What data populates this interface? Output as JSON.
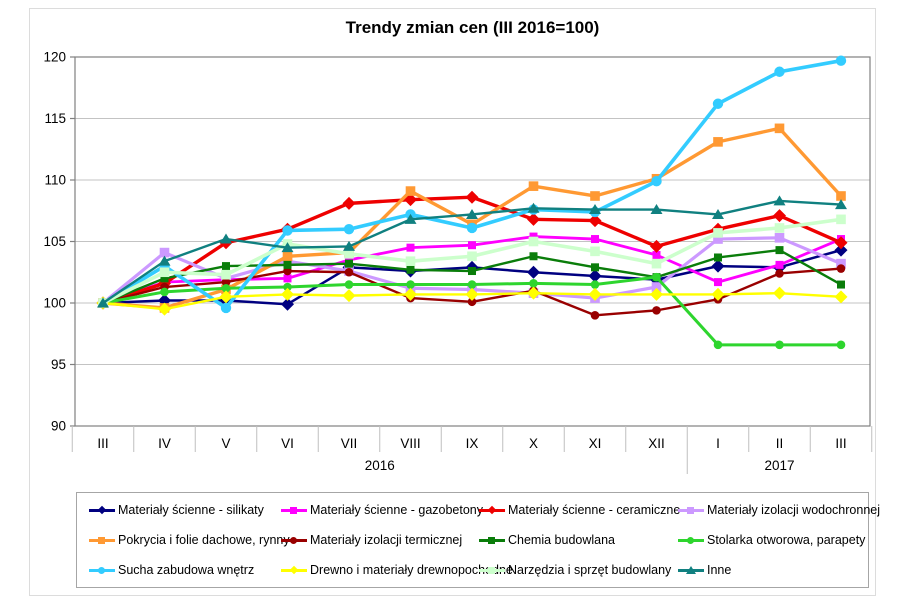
{
  "page": {
    "background": "#FFFFFF"
  },
  "chart_data": {
    "type": "line",
    "title": "Trendy zmian cen (III 2016=100)",
    "x_labels": [
      "III",
      "IV",
      "V",
      "VI",
      "VII",
      "VIII",
      "IX",
      "X",
      "XI",
      "XII",
      "I",
      "II",
      "III"
    ],
    "x_year_groups": [
      {
        "label": "2016",
        "from_index": 0,
        "to_index": 9
      },
      {
        "label": "2017",
        "from_index": 10,
        "to_index": 12
      }
    ],
    "ylim": [
      90,
      120
    ],
    "yticks": [
      90,
      95,
      100,
      105,
      110,
      115,
      120
    ],
    "grid": true,
    "legend_position": "bottom",
    "axis_color": "#808080",
    "grid_color": "#C3C3C3",
    "separator_color": "#BFBFBF",
    "series": [
      {
        "key": "silikaty",
        "name": "Materiały ścienne - silikaty",
        "color": "#000080",
        "marker": "diamond",
        "width": 2.5,
        "values": [
          100,
          100.2,
          100.2,
          99.9,
          102.9,
          102.6,
          102.9,
          102.5,
          102.2,
          101.9,
          103.0,
          102.9,
          104.3
        ]
      },
      {
        "key": "gazobetony",
        "name": "Materiały ścienne - gazobetony",
        "color": "#FF00FF",
        "marker": "square",
        "width": 2.8,
        "values": [
          100,
          101.7,
          101.9,
          102.0,
          103.5,
          104.5,
          104.7,
          105.4,
          105.2,
          103.9,
          101.7,
          103.1,
          105.2
        ]
      },
      {
        "key": "ceramiczne",
        "name": "Materiały ścienne - ceramiczne",
        "color": "#EE0000",
        "marker": "diamond",
        "width": 3.4,
        "values": [
          100,
          101.6,
          104.9,
          106.0,
          108.1,
          108.4,
          108.6,
          106.8,
          106.7,
          104.6,
          106.0,
          107.1,
          104.9
        ]
      },
      {
        "key": "wodochronnej",
        "name": "Materiały izolacji wodochronnej",
        "color": "#CC99FF",
        "marker": "square",
        "width": 3.2,
        "values": [
          100,
          104.1,
          102.0,
          103.4,
          102.6,
          101.2,
          101.1,
          100.8,
          100.4,
          101.3,
          105.2,
          105.3,
          103.2
        ]
      },
      {
        "key": "pokrycia",
        "name": "Pokrycia i folie dachowe, rynny",
        "color": "#FF9933",
        "marker": "square",
        "width": 3.4,
        "values": [
          100,
          99.6,
          101.1,
          103.8,
          104.1,
          109.1,
          106.4,
          109.5,
          108.7,
          110.1,
          113.1,
          114.2,
          108.7
        ]
      },
      {
        "key": "termicznej",
        "name": "Materiały izolacji termicznej",
        "color": "#990000",
        "marker": "circle",
        "width": 2.4,
        "values": [
          100,
          101.3,
          101.7,
          102.6,
          102.5,
          100.4,
          100.1,
          101.0,
          99.0,
          99.4,
          100.3,
          102.4,
          102.8
        ]
      },
      {
        "key": "chemia",
        "name": "Chemia budowlana",
        "color": "#0A7D0A",
        "marker": "square",
        "width": 2.4,
        "values": [
          100,
          102.0,
          103.0,
          103.1,
          103.2,
          102.7,
          102.6,
          103.8,
          102.9,
          102.1,
          103.7,
          104.3,
          101.5
        ]
      },
      {
        "key": "stolarka",
        "name": "Stolarka otworowa, parapety",
        "color": "#2ED52E",
        "marker": "circle",
        "width": 3.0,
        "values": [
          100,
          100.9,
          101.2,
          101.3,
          101.5,
          101.5,
          101.5,
          101.6,
          101.5,
          102.1,
          96.6,
          96.6,
          96.6
        ]
      },
      {
        "key": "sucha",
        "name": "Sucha zabudowa wnętrz",
        "color": "#33CCFF",
        "marker": "circle",
        "width": 3.6,
        "values": [
          100,
          103.0,
          99.6,
          105.9,
          106.0,
          107.2,
          106.1,
          107.6,
          107.4,
          109.9,
          116.2,
          118.8,
          119.7
        ]
      },
      {
        "key": "drewno",
        "name": "Drewno i materiały drewnopochodne",
        "color": "#FFFF00",
        "marker": "diamond",
        "width": 2.4,
        "values": [
          100,
          99.5,
          100.5,
          100.7,
          100.6,
          100.7,
          100.7,
          100.8,
          100.7,
          100.7,
          100.7,
          100.8,
          100.5
        ]
      },
      {
        "key": "narzedzia",
        "name": "Narzędzia i sprzęt budowlany",
        "color": "#CCFFCC",
        "marker": "square",
        "width": 3.6,
        "values": [
          100,
          102.5,
          102.3,
          104.8,
          104.0,
          103.4,
          103.8,
          105.0,
          104.2,
          103.2,
          105.7,
          106.1,
          106.8
        ]
      },
      {
        "key": "inne",
        "name": "Inne",
        "color": "#108080",
        "marker": "triangle",
        "width": 2.4,
        "values": [
          100,
          103.4,
          105.2,
          104.5,
          104.6,
          106.8,
          107.2,
          107.7,
          107.6,
          107.6,
          107.2,
          108.3,
          108.0
        ]
      }
    ]
  }
}
